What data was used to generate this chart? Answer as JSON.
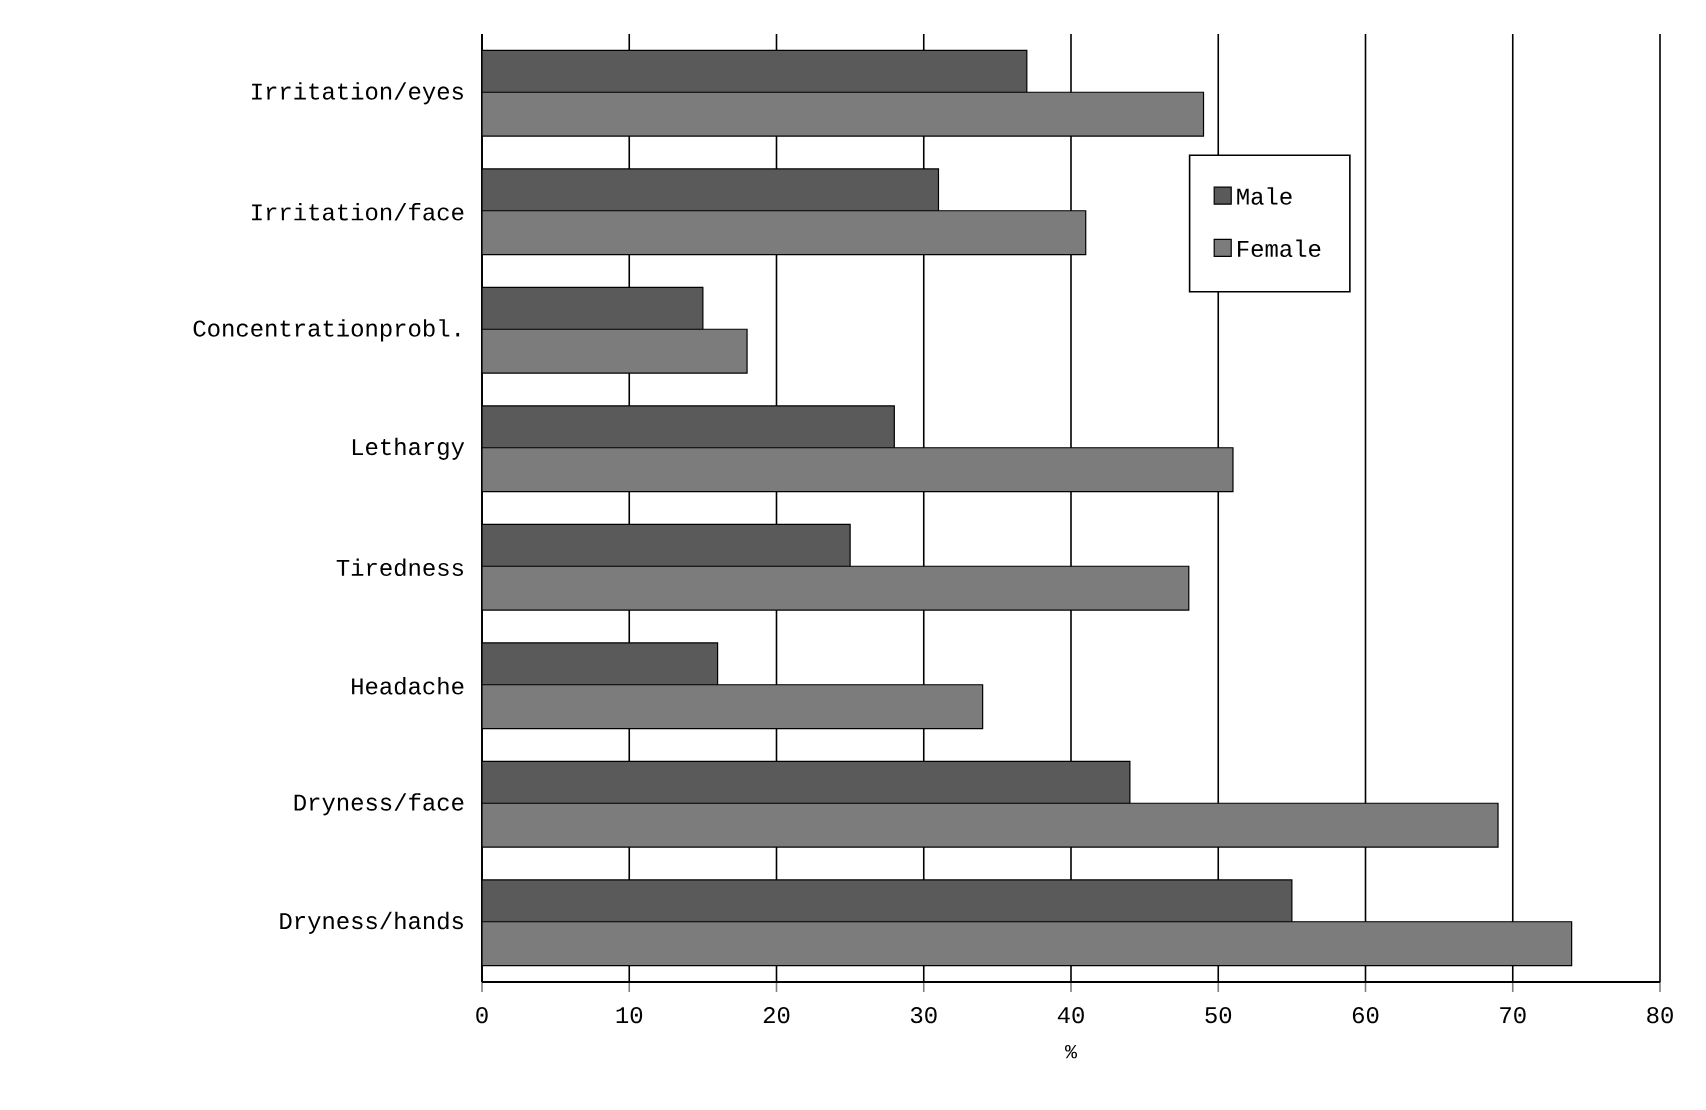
{
  "chart_data": {
    "type": "bar",
    "orientation": "horizontal",
    "xlabel": "%",
    "categories": [
      "Irritation/eyes",
      "Irritation/face",
      "Concentrationprobl.",
      "Lethargy",
      "Tiredness",
      "Headache",
      "Dryness/face",
      "Dryness/hands"
    ],
    "series": [
      {
        "name": "Male",
        "color": "#5a5a5a",
        "values": [
          37,
          31,
          15,
          28,
          25,
          16,
          44,
          55
        ]
      },
      {
        "name": "Female",
        "color": "#7c7c7c",
        "values": [
          49,
          41,
          18,
          51,
          48,
          34,
          69,
          74
        ]
      }
    ],
    "xlim": [
      0,
      80
    ],
    "xticks": [
      0,
      10,
      20,
      30,
      40,
      50,
      60,
      70,
      80
    ],
    "grid": "x",
    "legend": "top right"
  }
}
